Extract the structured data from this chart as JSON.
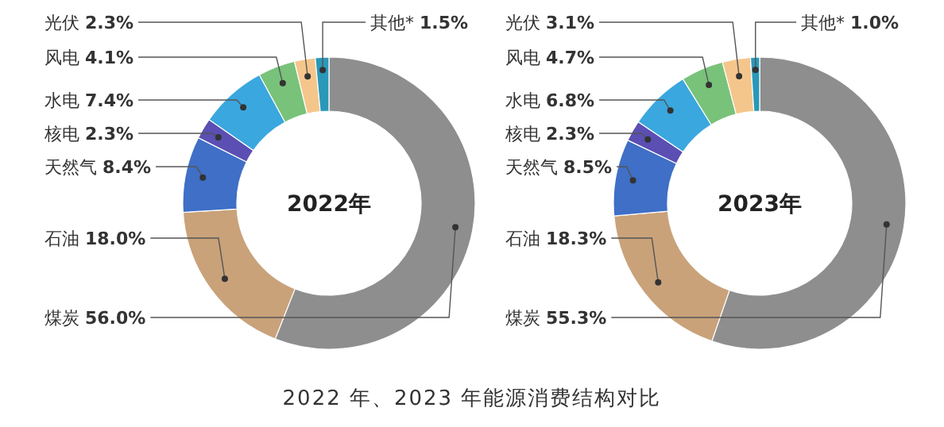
{
  "chart_data": [
    {
      "type": "donut",
      "title": "2022年",
      "categories": [
        "煤炭",
        "石油",
        "天然气",
        "核电",
        "水电",
        "风电",
        "光伏",
        "其他*"
      ],
      "values": [
        56.0,
        18.0,
        8.4,
        2.3,
        7.4,
        4.1,
        2.3,
        1.5
      ],
      "value_labels": [
        "56.0%",
        "18.0%",
        "8.4%",
        "2.3%",
        "7.4%",
        "4.1%",
        "2.3%",
        "1.5%"
      ],
      "colors": [
        "#8e8e8e",
        "#c9a27a",
        "#3f6fc6",
        "#5b4fb3",
        "#3aa7df",
        "#79c27a",
        "#f5c68c",
        "#2a98b8"
      ],
      "annotations": [
        "2022 年、2023 年能源消费结构对比"
      ]
    },
    {
      "type": "donut",
      "title": "2023年",
      "categories": [
        "煤炭",
        "石油",
        "天然气",
        "核电",
        "水电",
        "风电",
        "光伏",
        "其他*"
      ],
      "values": [
        55.3,
        18.3,
        8.5,
        2.3,
        6.8,
        4.7,
        3.1,
        1.0
      ],
      "value_labels": [
        "55.3%",
        "18.3%",
        "8.5%",
        "2.3%",
        "6.8%",
        "4.7%",
        "3.1%",
        "1.0%"
      ],
      "colors": [
        "#8e8e8e",
        "#c9a27a",
        "#3f6fc6",
        "#5b4fb3",
        "#3aa7df",
        "#79c27a",
        "#f5c68c",
        "#2a98b8"
      ]
    }
  ]
}
